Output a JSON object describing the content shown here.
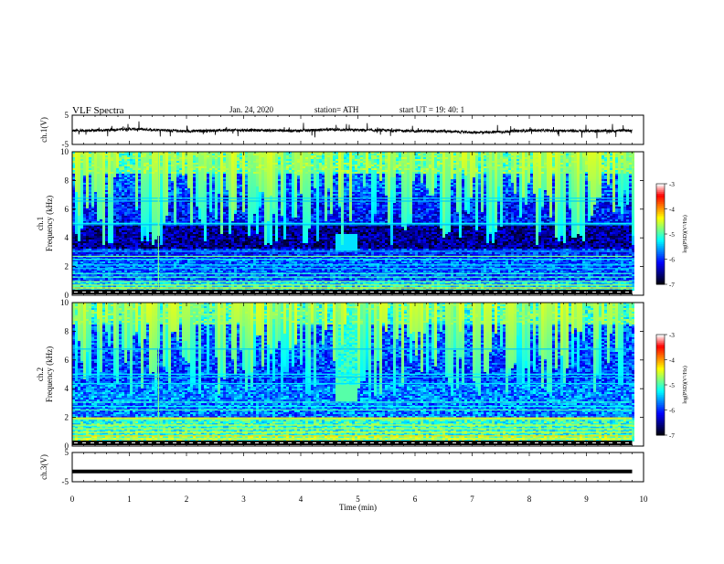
{
  "header": {
    "title": "VLF  Spectra",
    "date": "Jan. 24, 2020",
    "station": "station= ATH",
    "start_ut": "start  UT  =    19: 40: 1"
  },
  "chart_data": [
    {
      "type": "line",
      "panel": "ch1-waveform",
      "ylabel": "ch.1(V)",
      "ylim": [
        -5,
        5
      ],
      "yticks": [
        "5",
        "-5"
      ],
      "xlim": [
        0,
        10
      ],
      "series": [
        {
          "x": [
            0,
            0.5,
            1,
            1.5,
            2,
            2.5,
            3,
            3.5,
            4,
            4.5,
            5,
            5.5,
            6,
            6.5,
            7,
            7.5,
            8,
            8.5,
            9,
            9.5,
            9.8
          ],
          "values": [
            -0.3,
            -0.2,
            0.3,
            0.0,
            -0.5,
            -0.2,
            -0.1,
            -0.2,
            -0.3,
            0.1,
            -0.1,
            -0.2,
            -0.4,
            -0.5,
            -0.9,
            -0.7,
            -0.2,
            -0.3,
            -0.4,
            -0.3,
            -0.2
          ]
        }
      ],
      "color": "#000000"
    },
    {
      "type": "heatmap",
      "panel": "ch1-spectrogram",
      "ylabel": "ch.1",
      "ylabel2": "Frequency (kHz)",
      "ylim": [
        0,
        10
      ],
      "yticks": [
        "0",
        "2",
        "4",
        "6",
        "8",
        "10"
      ],
      "xlim": [
        0,
        10
      ],
      "data_end_min": 9.8,
      "colorbar": {
        "label": "log(PSD)(V²/Hz)",
        "range": [
          -7,
          -3
        ],
        "ticks": [
          "-3",
          "-4",
          "-5",
          "-6",
          "-7"
        ]
      }
    },
    {
      "type": "heatmap",
      "panel": "ch2-spectrogram",
      "ylabel": "ch.2",
      "ylabel2": "Frequency (kHz)",
      "ylim": [
        0,
        10
      ],
      "yticks": [
        "0",
        "2",
        "4",
        "6",
        "8",
        "10"
      ],
      "xlim": [
        0,
        10
      ],
      "data_end_min": 9.8,
      "colorbar": {
        "label": "log(PSD)(V²/Hz)",
        "range": [
          -7,
          -3
        ],
        "ticks": [
          "-3",
          "-4",
          "-5",
          "-6",
          "-7"
        ]
      }
    },
    {
      "type": "line",
      "panel": "ch3-waveform",
      "ylabel": "ch.3(V)",
      "ylim": [
        -5,
        5
      ],
      "yticks": [
        "5",
        "-5"
      ],
      "xlim": [
        0,
        10
      ],
      "series": [
        {
          "x": [
            0,
            9.8
          ],
          "values": [
            -1.5,
            -1.5
          ]
        }
      ],
      "color": "#000000",
      "xlabel": "Time  (min)",
      "xticks": [
        "0",
        "1",
        "2",
        "3",
        "4",
        "5",
        "6",
        "7",
        "8",
        "9",
        "10"
      ]
    }
  ],
  "colors": {
    "background": "#ffffff",
    "axis": "#000000",
    "colormap": [
      "#000000",
      "#00007f",
      "#0000ff",
      "#007fff",
      "#00ffff",
      "#7fff7f",
      "#ffff00",
      "#ff7f00",
      "#ff0000",
      "#ffffff"
    ]
  }
}
